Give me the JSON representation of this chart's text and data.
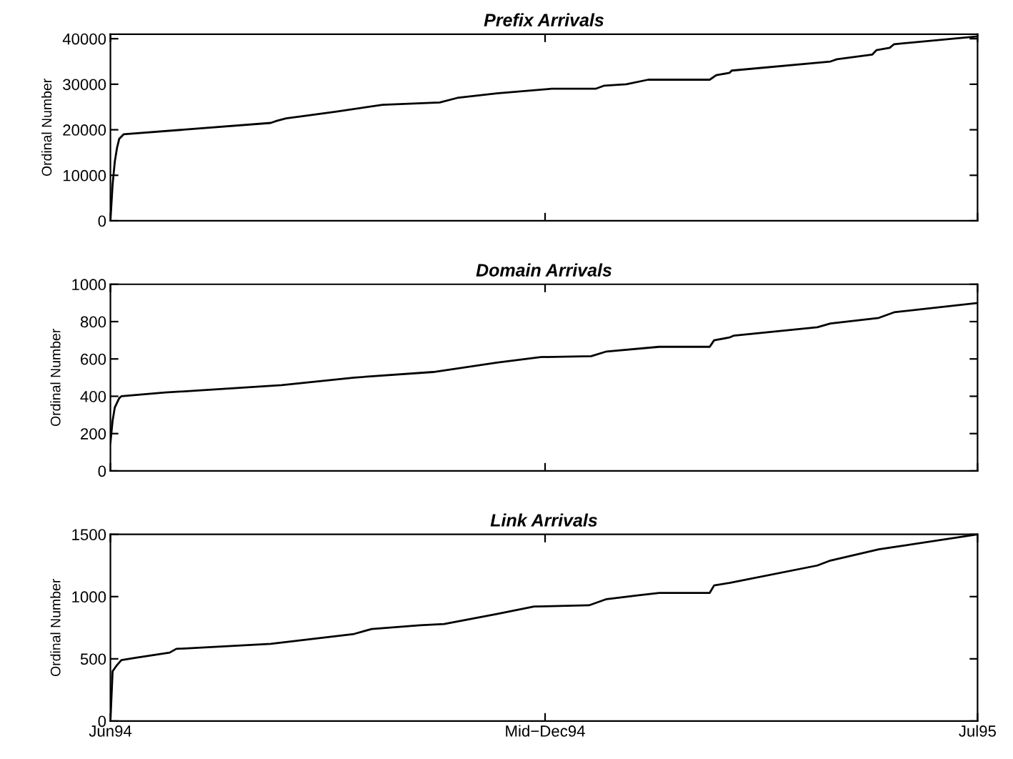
{
  "chart_data": [
    {
      "type": "line",
      "title": "Prefix Arrivals",
      "ylabel": "Ordinal Number",
      "xlim": [
        "1994-06-01",
        "1995-07-01"
      ],
      "xticks": [
        {
          "value": "1994-06-01",
          "label": null
        },
        {
          "value": "1994-12-16",
          "label": null
        },
        {
          "value": "1995-07-01",
          "label": null
        }
      ],
      "ylim": [
        0,
        41000
      ],
      "yticks": [
        0,
        10000,
        20000,
        30000,
        40000
      ],
      "tick_labels": "y",
      "marker": "none",
      "line_style": "solid",
      "series": [
        {
          "color": "#000000",
          "x": [
            "1994-06-01",
            "1994-06-02",
            "1994-06-03",
            "1994-06-04",
            "1994-06-05",
            "1994-06-07",
            "1994-08-13",
            "1994-08-16",
            "1994-08-20",
            "1994-08-28",
            "1994-09-12",
            "1994-10-03",
            "1994-10-29",
            "1994-11-06",
            "1994-11-24",
            "1994-12-19",
            "1995-01-08",
            "1995-01-12",
            "1995-01-22",
            "1995-02-01",
            "1995-03-01",
            "1995-03-04",
            "1995-03-10",
            "1995-03-11",
            "1995-04-25",
            "1995-04-28",
            "1995-05-14",
            "1995-05-16",
            "1995-05-22",
            "1995-05-24",
            "1995-07-01"
          ],
          "values": [
            0,
            8000,
            13000,
            16000,
            18000,
            19000,
            21500,
            22000,
            22500,
            23000,
            24000,
            25500,
            26000,
            27000,
            28000,
            29000,
            29000,
            29700,
            30000,
            31000,
            31000,
            32000,
            32500,
            33000,
            35000,
            35500,
            36500,
            37500,
            38000,
            38800,
            40500
          ]
        }
      ]
    },
    {
      "type": "line",
      "title": "Domain Arrivals",
      "ylabel": "Ordinal Number",
      "xlim": [
        "1994-06-01",
        "1995-07-01"
      ],
      "xticks": [
        {
          "value": "1994-06-01",
          "label": null
        },
        {
          "value": "1994-12-16",
          "label": null
        },
        {
          "value": "1995-07-01",
          "label": null
        }
      ],
      "ylim": [
        0,
        1000
      ],
      "yticks": [
        0,
        200,
        400,
        600,
        800,
        1000
      ],
      "tick_labels": "y",
      "marker": "none",
      "line_style": "solid",
      "series": [
        {
          "color": "#000000",
          "x": [
            "1994-06-01",
            "1994-06-02",
            "1994-06-03",
            "1994-06-05",
            "1994-06-06",
            "1994-06-26",
            "1994-08-18",
            "1994-09-20",
            "1994-10-26",
            "1994-11-24",
            "1994-12-14",
            "1995-01-06",
            "1995-01-13",
            "1995-02-06",
            "1995-03-01",
            "1995-03-03",
            "1995-03-10",
            "1995-03-12",
            "1995-04-19",
            "1995-04-25",
            "1995-05-17",
            "1995-05-24",
            "1995-07-01"
          ],
          "values": [
            150,
            270,
            340,
            390,
            400,
            420,
            460,
            500,
            530,
            580,
            610,
            615,
            640,
            665,
            665,
            700,
            715,
            725,
            770,
            790,
            820,
            850,
            900
          ]
        }
      ]
    },
    {
      "type": "line",
      "title": "Link Arrivals",
      "ylabel": "Ordinal Number",
      "xlim": [
        "1994-06-01",
        "1995-07-01"
      ],
      "xticks": [
        {
          "value": "1994-06-01",
          "label": "Jun94"
        },
        {
          "value": "1994-12-16",
          "label": "Mid−Dec94"
        },
        {
          "value": "1995-07-01",
          "label": "Jul95"
        }
      ],
      "ylim": [
        0,
        1500
      ],
      "yticks": [
        0,
        500,
        1000,
        1500
      ],
      "marker": "none",
      "line_style": "solid",
      "series": [
        {
          "color": "#000000",
          "x": [
            "1994-06-01",
            "1994-06-02",
            "1994-06-04",
            "1994-06-06",
            "1994-06-13",
            "1994-06-28",
            "1994-07-01",
            "1994-08-13",
            "1994-09-20",
            "1994-09-28",
            "1994-10-20",
            "1994-10-31",
            "1994-11-24",
            "1994-12-11",
            "1995-01-05",
            "1995-01-13",
            "1995-01-27",
            "1995-02-06",
            "1995-03-01",
            "1995-03-03",
            "1995-03-10",
            "1995-04-19",
            "1995-04-25",
            "1995-05-17",
            "1995-07-01"
          ],
          "values": [
            0,
            400,
            450,
            490,
            510,
            550,
            580,
            620,
            700,
            740,
            770,
            780,
            860,
            920,
            930,
            980,
            1010,
            1030,
            1030,
            1090,
            1110,
            1250,
            1290,
            1380,
            1500
          ]
        }
      ]
    }
  ]
}
